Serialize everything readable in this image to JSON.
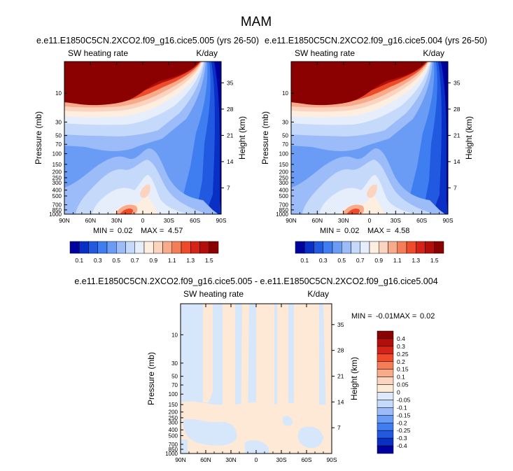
{
  "page_title": "MAM",
  "colors": {
    "abs_scale": [
      "#00009f",
      "#0a2fc5",
      "#2159e0",
      "#3f7ef0",
      "#6a9cf6",
      "#9bbcf8",
      "#c5d9fa",
      "#e6eefc",
      "#fdeee0",
      "#fbd3bf",
      "#f8ab8b",
      "#f47c56",
      "#ee4b2b",
      "#d52417",
      "#b30f0a",
      "#8b0000"
    ],
    "diff_scale": [
      "#00009f",
      "#0a2fc5",
      "#2159e0",
      "#3f7ef0",
      "#6a9cf6",
      "#9bbcf8",
      "#c5d9fa",
      "#dde9fb",
      "#fdebd8",
      "#fbd3bf",
      "#f8ab8b",
      "#f47c56",
      "#ee4b2b",
      "#d52417",
      "#b30f0a",
      "#8b0000"
    ],
    "diff_light_blue": "#d6e6fb",
    "diff_light_orange": "#fde9d6"
  },
  "chart_data": [
    {
      "type": "contour",
      "title": "e.e11.E1850C5CN.2XCO2.f09_g16.cice5.005 (yrs 26-50)",
      "variable_label": "SW heating rate",
      "units_label": "K/day",
      "ylabel": "Pressure (mb)",
      "ylabel_right": "Height (km)",
      "x_tick_labels": [
        "90N",
        "60N",
        "30N",
        "0",
        "30S",
        "60S",
        "90S"
      ],
      "x_range": [
        90,
        -90
      ],
      "y_tick_labels": [
        "10",
        "30",
        "50",
        "70",
        "100",
        "150",
        "200",
        "250",
        "300",
        "400",
        "500",
        "700",
        "850",
        "1000"
      ],
      "y_range_mb": [
        3,
        1000
      ],
      "height_tick_labels": [
        "35",
        "28",
        "21",
        "14",
        "7"
      ],
      "stats": {
        "min_label": "MIN =",
        "min": "0.02",
        "max_label": "MAX =",
        "max": "4.57"
      },
      "levels": [
        0.1,
        0.2,
        0.3,
        0.4,
        0.5,
        0.6,
        0.7,
        0.8,
        0.9,
        1.0,
        1.1,
        1.2,
        1.3,
        1.4,
        1.5
      ],
      "colorbar_labels": [
        "0.1",
        "0.3",
        "0.5",
        "0.7",
        "0.9",
        "1.1",
        "1.3",
        "1.5"
      ]
    },
    {
      "type": "contour",
      "title": "e.e11.E1850C5CN.2XCO2.f09_g16.cice5.004 (yrs 26-50)",
      "variable_label": "SW heating rate",
      "units_label": "K/day",
      "ylabel": "Pressure (mb)",
      "ylabel_right": "Height (km)",
      "x_tick_labels": [
        "90N",
        "60N",
        "30N",
        "0",
        "30S",
        "60S",
        "90S"
      ],
      "x_range": [
        90,
        -90
      ],
      "y_tick_labels": [
        "10",
        "30",
        "50",
        "70",
        "100",
        "150",
        "200",
        "250",
        "300",
        "400",
        "500",
        "700",
        "850",
        "1000"
      ],
      "y_range_mb": [
        3,
        1000
      ],
      "height_tick_labels": [
        "35",
        "28",
        "21",
        "14",
        "7"
      ],
      "stats": {
        "min_label": "MIN =",
        "min": "0.02",
        "max_label": "MAX =",
        "max": "4.58"
      },
      "levels": [
        0.1,
        0.2,
        0.3,
        0.4,
        0.5,
        0.6,
        0.7,
        0.8,
        0.9,
        1.0,
        1.1,
        1.2,
        1.3,
        1.4,
        1.5
      ],
      "colorbar_labels": [
        "0.1",
        "0.3",
        "0.5",
        "0.7",
        "0.9",
        "1.1",
        "1.3",
        "1.5"
      ]
    },
    {
      "type": "contour",
      "title": "e.e11.E1850C5CN.2XCO2.f09_g16.cice5.005 - e.e11.E1850C5CN.2XCO2.f09_g16.cice5.004",
      "variable_label": "SW heating rate",
      "units_label": "K/day",
      "ylabel": "Pressure (mb)",
      "ylabel_right": "Height (km)",
      "x_tick_labels": [
        "90N",
        "60N",
        "30N",
        "0",
        "30S",
        "60S",
        "90S"
      ],
      "x_range": [
        90,
        -90
      ],
      "y_tick_labels": [
        "10",
        "30",
        "50",
        "70",
        "100",
        "150",
        "200",
        "250",
        "300",
        "400",
        "500",
        "700",
        "850",
        "1000"
      ],
      "y_range_mb": [
        3,
        1000
      ],
      "height_tick_labels": [
        "35",
        "28",
        "21",
        "14",
        "7"
      ],
      "stats": {
        "min_label": "MIN =",
        "min": "-0.01",
        "max_label": "MAX =",
        "max": "0.02"
      },
      "levels": [
        -0.4,
        -0.3,
        -0.25,
        -0.2,
        -0.15,
        -0.1,
        -0.05,
        0,
        0.05,
        0.1,
        0.15,
        0.2,
        0.25,
        0.3,
        0.4
      ],
      "colorbar_labels": [
        "0.4",
        "0.3",
        "0.25",
        "0.2",
        "0.15",
        "0.1",
        "0.05",
        "0",
        "-0.05",
        "-0.1",
        "-0.15",
        "-0.2",
        "-0.25",
        "-0.3",
        "-0.4"
      ]
    }
  ]
}
